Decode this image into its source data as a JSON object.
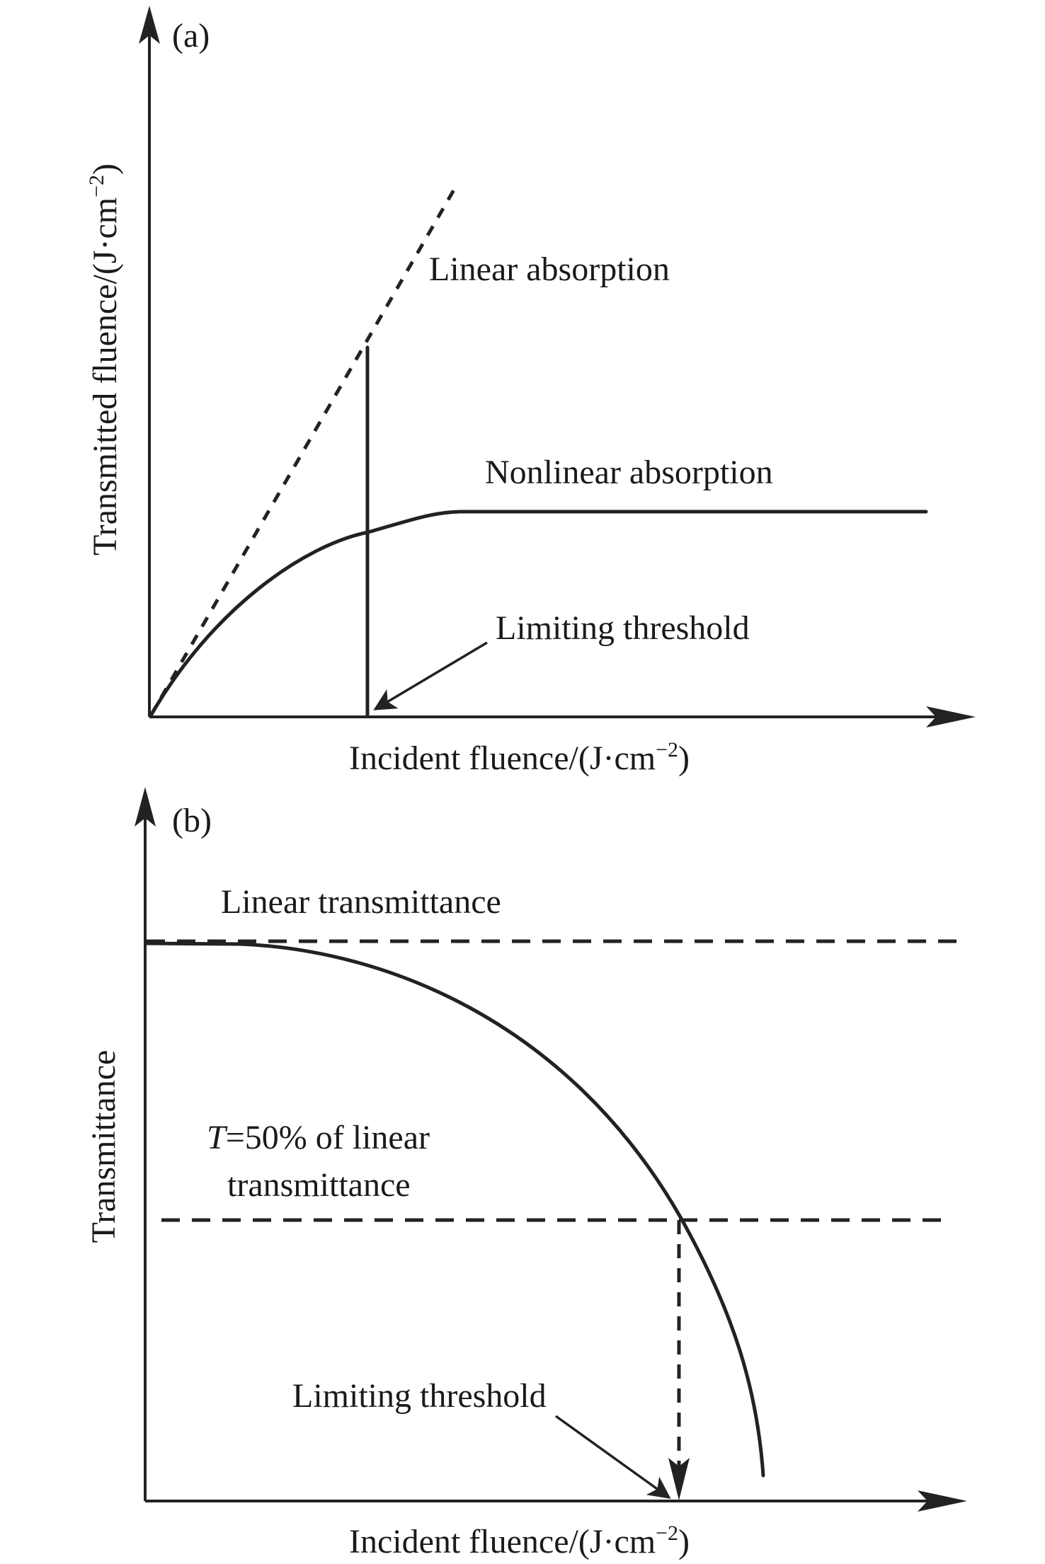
{
  "panel_a": {
    "label": "(a)",
    "ylabel": "Transmitted fluence/(J·cm",
    "xlabel": "Incident fluence/(J·cm",
    "unit_exp": "−2",
    "close": ")",
    "curve_labels": {
      "linear": "Linear absorption",
      "nonlinear": "Nonlinear absorption",
      "threshold": "Limiting threshold"
    }
  },
  "panel_b": {
    "label": "(b)",
    "ylabel": "Transmittance",
    "xlabel": "Incident fluence/(J·cm",
    "unit_exp": "−2",
    "close": ")",
    "curve_labels": {
      "linear": "Linear transmittance",
      "half_T": "T",
      "half_rest": "=50% of linear",
      "half_line2": "transmittance",
      "threshold": "Limiting threshold"
    }
  }
}
